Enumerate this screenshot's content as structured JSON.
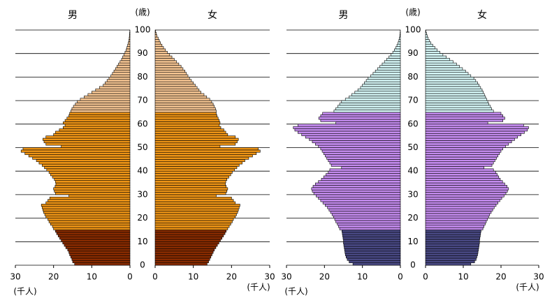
{
  "chart_data": [
    {
      "type": "pyramid",
      "age_unit": "(歳)",
      "x_unit": "(千人)",
      "ylim": [
        0,
        100
      ],
      "yticks": [
        0,
        10,
        20,
        30,
        40,
        50,
        60,
        70,
        80,
        90,
        100
      ],
      "xlim": [
        0,
        30
      ],
      "xticks": [
        0,
        10,
        20,
        30
      ],
      "grid": true,
      "color_bands": [
        {
          "start": 0,
          "color": "#8b2c00"
        },
        {
          "start": 15,
          "color": "#ef9516"
        },
        {
          "start": 65,
          "color": "#f7c693"
        }
      ],
      "ages": [
        0,
        1,
        2,
        3,
        4,
        5,
        6,
        7,
        8,
        9,
        10,
        11,
        12,
        13,
        14,
        15,
        16,
        17,
        18,
        19,
        20,
        21,
        22,
        23,
        24,
        25,
        26,
        27,
        28,
        29,
        30,
        31,
        32,
        33,
        34,
        35,
        36,
        37,
        38,
        39,
        40,
        41,
        42,
        43,
        44,
        45,
        46,
        47,
        48,
        49,
        50,
        51,
        52,
        53,
        54,
        55,
        56,
        57,
        58,
        59,
        60,
        61,
        62,
        63,
        64,
        65,
        66,
        67,
        68,
        69,
        70,
        71,
        72,
        73,
        74,
        75,
        76,
        77,
        78,
        79,
        80,
        81,
        82,
        83,
        84,
        85,
        86,
        87,
        88,
        89,
        90,
        91,
        92,
        93,
        94,
        95,
        96,
        97,
        98,
        99
      ],
      "series": [
        {
          "name": "男",
          "values": [
            14.5,
            15.0,
            15.2,
            15.5,
            15.8,
            16.0,
            16.3,
            16.8,
            17.2,
            17.6,
            18.0,
            18.4,
            18.8,
            19.2,
            19.5,
            20.0,
            20.3,
            20.8,
            21.2,
            21.5,
            22.0,
            22.3,
            22.6,
            22.8,
            23.0,
            23.2,
            22.0,
            21.5,
            21.0,
            16.0,
            19.5,
            19.8,
            20.0,
            19.6,
            19.4,
            19.5,
            19.8,
            20.3,
            20.8,
            21.2,
            21.8,
            22.4,
            23.0,
            23.8,
            24.5,
            25.5,
            26.5,
            27.5,
            28.5,
            28.0,
            18.0,
            22.0,
            22.5,
            22.8,
            22.0,
            20.0,
            19.5,
            18.5,
            17.5,
            17.0,
            17.5,
            17.0,
            16.5,
            16.0,
            15.8,
            15.5,
            15.2,
            14.8,
            14.3,
            13.8,
            13.0,
            12.0,
            11.0,
            10.0,
            9.0,
            8.0,
            7.0,
            6.5,
            6.0,
            5.5,
            5.0,
            4.6,
            4.2,
            3.8,
            3.4,
            3.0,
            2.6,
            2.2,
            1.9,
            1.6,
            1.3,
            1.0,
            0.8,
            0.6,
            0.45,
            0.3,
            0.2,
            0.15,
            0.1,
            0.05
          ]
        },
        {
          "name": "女",
          "values": [
            13.6,
            14.0,
            14.3,
            14.6,
            14.9,
            15.2,
            15.5,
            15.9,
            16.3,
            16.7,
            17.1,
            17.5,
            17.9,
            18.3,
            18.6,
            19.0,
            19.4,
            19.8,
            20.2,
            20.5,
            21.0,
            21.3,
            21.6,
            21.8,
            22.0,
            22.2,
            21.0,
            20.5,
            20.0,
            16.0,
            18.5,
            18.8,
            19.0,
            18.6,
            18.4,
            18.5,
            18.8,
            19.3,
            19.8,
            20.2,
            20.8,
            21.4,
            22.0,
            22.8,
            23.5,
            24.5,
            25.5,
            26.5,
            27.5,
            27.0,
            17.0,
            21.0,
            21.5,
            21.8,
            21.0,
            19.0,
            18.5,
            18.0,
            17.2,
            16.8,
            17.0,
            16.8,
            16.5,
            16.2,
            16.0,
            16.0,
            15.8,
            15.5,
            15.2,
            14.8,
            14.3,
            13.5,
            12.8,
            12.0,
            11.5,
            11.0,
            10.5,
            10.0,
            9.5,
            9.0,
            8.6,
            8.2,
            7.8,
            7.3,
            6.8,
            6.2,
            5.6,
            5.0,
            4.4,
            3.8,
            3.2,
            2.7,
            2.2,
            1.8,
            1.4,
            1.1,
            0.8,
            0.5,
            0.3,
            0.15
          ]
        }
      ]
    },
    {
      "type": "pyramid",
      "age_unit": "(歳)",
      "x_unit": "(千人)",
      "ylim": [
        0,
        100
      ],
      "yticks": [
        0,
        10,
        20,
        30,
        40,
        50,
        60,
        70,
        80,
        90,
        100
      ],
      "xlim": [
        0,
        30
      ],
      "xticks": [
        0,
        10,
        20,
        30
      ],
      "grid": true,
      "color_bands": [
        {
          "start": 0,
          "color": "#4a4a86"
        },
        {
          "start": 15,
          "color": "#c58cf0"
        },
        {
          "start": 65,
          "color": "#d6f8f8"
        }
      ],
      "ages": [
        0,
        1,
        2,
        3,
        4,
        5,
        6,
        7,
        8,
        9,
        10,
        11,
        12,
        13,
        14,
        15,
        16,
        17,
        18,
        19,
        20,
        21,
        22,
        23,
        24,
        25,
        26,
        27,
        28,
        29,
        30,
        31,
        32,
        33,
        34,
        35,
        36,
        37,
        38,
        39,
        40,
        41,
        42,
        43,
        44,
        45,
        46,
        47,
        48,
        49,
        50,
        51,
        52,
        53,
        54,
        55,
        56,
        57,
        58,
        59,
        60,
        61,
        62,
        63,
        64,
        65,
        66,
        67,
        68,
        69,
        70,
        71,
        72,
        73,
        74,
        75,
        76,
        77,
        78,
        79,
        80,
        81,
        82,
        83,
        84,
        85,
        86,
        87,
        88,
        89,
        90,
        91,
        92,
        93,
        94,
        95,
        96,
        97,
        98,
        99
      ],
      "series": [
        {
          "name": "男",
          "values": [
            12.5,
            13.5,
            14.0,
            14.3,
            14.5,
            14.6,
            14.7,
            14.8,
            14.9,
            15.0,
            15.0,
            15.1,
            15.2,
            15.3,
            15.4,
            16.0,
            16.3,
            16.6,
            17.0,
            17.3,
            17.6,
            18.0,
            18.4,
            18.8,
            19.2,
            19.8,
            20.4,
            21.0,
            21.6,
            22.2,
            22.8,
            23.2,
            23.4,
            23.0,
            22.4,
            21.6,
            20.8,
            20.2,
            19.6,
            19.0,
            18.6,
            15.5,
            18.2,
            18.6,
            19.0,
            19.4,
            19.8,
            20.2,
            20.6,
            21.0,
            21.6,
            22.4,
            23.2,
            24.0,
            25.0,
            26.0,
            27.0,
            27.8,
            28.2,
            27.0,
            17.0,
            21.0,
            21.5,
            21.0,
            20.5,
            17.5,
            17.0,
            16.5,
            16.0,
            15.5,
            14.5,
            13.5,
            12.8,
            12.0,
            11.2,
            10.5,
            10.0,
            9.5,
            9.0,
            8.5,
            7.8,
            7.2,
            6.6,
            6.0,
            5.4,
            4.8,
            4.2,
            3.6,
            3.0,
            2.5,
            2.0,
            1.6,
            1.2,
            0.9,
            0.6,
            0.4,
            0.25,
            0.15,
            0.08,
            0.04
          ]
        },
        {
          "name": "女",
          "values": [
            12.0,
            13.0,
            13.4,
            13.6,
            13.8,
            13.9,
            14.0,
            14.1,
            14.2,
            14.3,
            14.3,
            14.4,
            14.5,
            14.6,
            14.7,
            15.2,
            15.5,
            15.8,
            16.1,
            16.4,
            16.7,
            17.0,
            17.4,
            17.8,
            18.2,
            18.7,
            19.2,
            19.7,
            20.2,
            20.8,
            21.3,
            21.7,
            22.0,
            21.6,
            21.0,
            20.4,
            19.8,
            19.4,
            19.0,
            18.6,
            18.0,
            15.5,
            17.6,
            18.0,
            18.4,
            18.8,
            19.2,
            19.6,
            20.0,
            20.5,
            21.2,
            22.0,
            22.8,
            23.6,
            24.4,
            25.3,
            26.2,
            27.0,
            27.3,
            26.0,
            16.5,
            20.5,
            21.0,
            20.5,
            20.0,
            18.0,
            17.5,
            17.2,
            16.8,
            16.5,
            16.2,
            15.9,
            15.6,
            15.3,
            15.0,
            14.6,
            14.2,
            13.8,
            13.3,
            12.8,
            12.0,
            11.3,
            10.6,
            9.8,
            9.0,
            8.2,
            7.3,
            6.4,
            5.5,
            4.6,
            3.8,
            3.1,
            2.5,
            1.9,
            1.4,
            1.0,
            0.7,
            0.45,
            0.25,
            0.12
          ]
        }
      ]
    }
  ]
}
